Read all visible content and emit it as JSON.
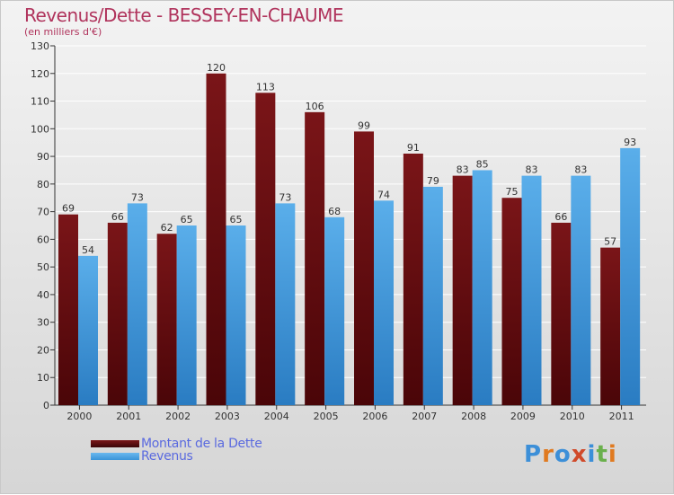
{
  "title": "Revenus/Dette - BESSEY-EN-CHAUME",
  "subtitle": "(en milliers d'€)",
  "logo": {
    "text": "Proxiti",
    "colors": [
      "#3c8fd8",
      "#e07a20",
      "#3c8fd8",
      "#d04a2a",
      "#3c8fd8",
      "#6ab04c",
      "#e07a20"
    ]
  },
  "colors": {
    "dette": "#7a1518",
    "revenus": "#3a94d8",
    "text": "#b0335c",
    "axis": "#333333",
    "grid": "#ffffff"
  },
  "chart_data": {
    "type": "bar",
    "categories": [
      "2000",
      "2001",
      "2002",
      "2003",
      "2004",
      "2005",
      "2006",
      "2007",
      "2008",
      "2009",
      "2010",
      "2011"
    ],
    "series": [
      {
        "name": "Montant de la Dette",
        "values": [
          69,
          66,
          62,
          120,
          113,
          106,
          99,
          91,
          83,
          75,
          66,
          57
        ]
      },
      {
        "name": "Revenus",
        "values": [
          54,
          73,
          65,
          65,
          73,
          68,
          74,
          79,
          85,
          83,
          83,
          93
        ]
      }
    ],
    "ylim": [
      0,
      130
    ],
    "yticks": [
      0,
      10,
      20,
      30,
      40,
      50,
      60,
      70,
      80,
      90,
      100,
      110,
      120,
      130
    ],
    "grid": true,
    "legend_position": "bottom-left"
  }
}
